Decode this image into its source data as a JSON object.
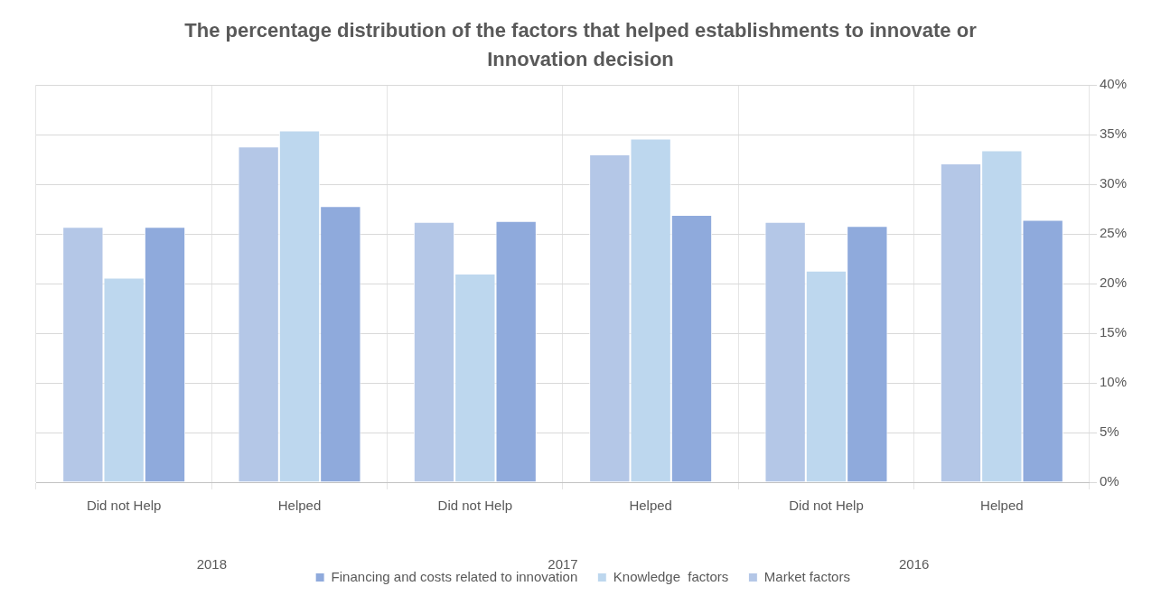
{
  "chart_data": {
    "type": "bar",
    "title": "The percentage distribution of the factors that helped establishments to innovate or Innovation decision",
    "categories": [
      "Did not Help",
      "Helped",
      "Did not Help",
      "Helped",
      "Did not Help",
      "Helped"
    ],
    "annotations": [
      "2018",
      "2017",
      "2016"
    ],
    "series": [
      {
        "name": "Market factors",
        "color": "#b4c7e7",
        "values": [
          25.7,
          33.8,
          26.2,
          33.0,
          26.2,
          32.1
        ]
      },
      {
        "name": "Knowledge  factors",
        "color": "#bdd7ee",
        "values": [
          20.6,
          35.4,
          21.0,
          34.6,
          21.3,
          33.4
        ]
      },
      {
        "name": "Financing and costs related to innovation",
        "color": "#8faadc",
        "values": [
          25.7,
          27.8,
          26.3,
          26.9,
          25.8,
          26.4
        ]
      }
    ],
    "ylim": [
      0,
      40
    ],
    "yticks": [
      {
        "value": 0,
        "label": "0%"
      },
      {
        "value": 5,
        "label": "5%"
      },
      {
        "value": 10,
        "label": "10%"
      },
      {
        "value": 15,
        "label": "15%"
      },
      {
        "value": 20,
        "label": "20%"
      },
      {
        "value": 25,
        "label": "25%"
      },
      {
        "value": 30,
        "label": "30%"
      },
      {
        "value": 35,
        "label": "35%"
      },
      {
        "value": 40,
        "label": "40%"
      }
    ],
    "grid": true,
    "legend": "bottom"
  }
}
